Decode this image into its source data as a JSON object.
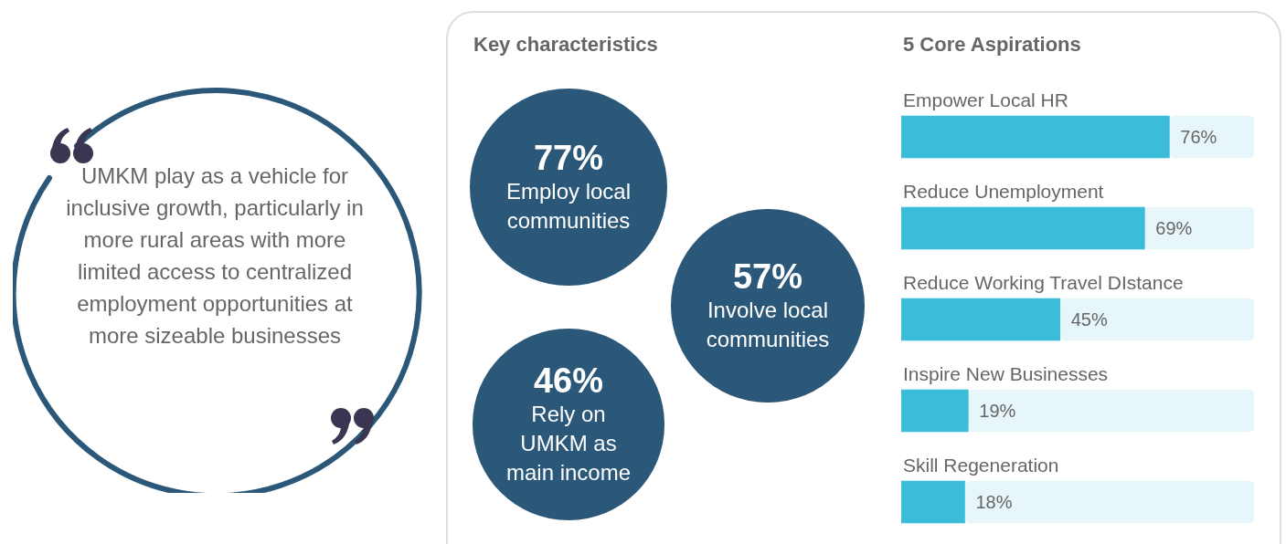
{
  "chart_data": [
    {
      "type": "other",
      "annotations": [
        "UMKM play as a vehicle for inclusive growth, particularly in more rural areas with more limited access to centralized employment opportunities at more sizeable businesses"
      ]
    },
    {
      "type": "other",
      "title": "Key characteristics",
      "categories": [
        "Employ local communities",
        "Involve local communities",
        "Rely on UMKM as main income"
      ],
      "values": [
        77,
        57,
        46
      ],
      "value_labels": [
        "77%",
        "57%",
        "46%"
      ],
      "color": "#2b5779"
    },
    {
      "type": "bar",
      "orientation": "horizontal",
      "title": "5 Core Aspirations",
      "categories": [
        "Empower Local HR",
        "Reduce Unemployment",
        "Reduce Working Travel DIstance",
        "Inspire New Businesses",
        "Skill Regeneration"
      ],
      "stacked": true,
      "series": [
        {
          "color": "#3bbcd9",
          "values": [
            76,
            69,
            45,
            19,
            18
          ],
          "value_labels": [
            "76%",
            "69%",
            "45%",
            "19%",
            "18%"
          ]
        },
        {
          "color": "#e6f6fa",
          "values": [
            24,
            31,
            55,
            81,
            82
          ]
        }
      ],
      "xlim": [
        0,
        100
      ],
      "tick_labels": false,
      "grid": false,
      "legend": false
    }
  ]
}
